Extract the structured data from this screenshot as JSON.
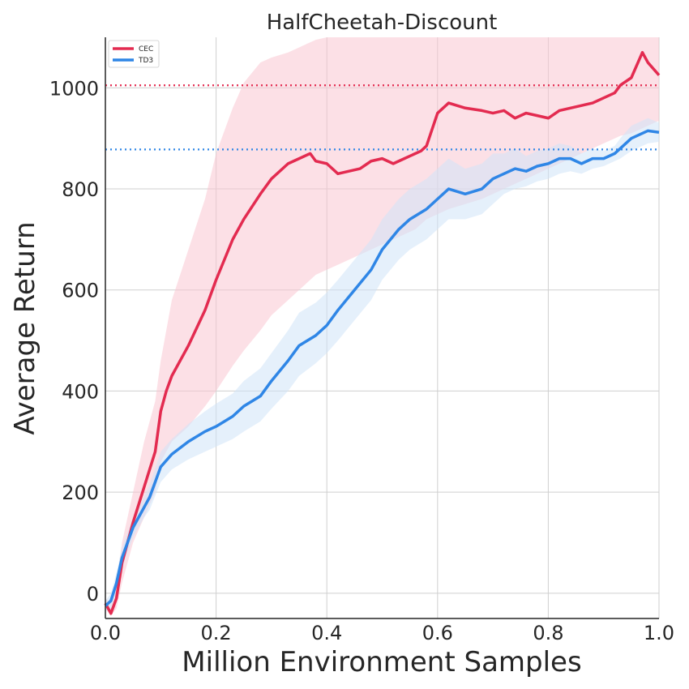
{
  "chart_data": {
    "type": "line",
    "title": "HalfCheetah-Discount",
    "xlabel": "Million Environment Samples",
    "ylabel": "Average Return",
    "xlim": [
      0,
      1.0
    ],
    "ylim": [
      -50,
      1100
    ],
    "xticks": [
      0.0,
      0.2,
      0.4,
      0.6,
      0.8,
      1.0
    ],
    "xtick_labels": [
      "0.0",
      "0.2",
      "0.4",
      "0.6",
      "0.8",
      "1.0"
    ],
    "yticks": [
      0,
      200,
      400,
      600,
      800,
      1000
    ],
    "ytick_labels": [
      "0",
      "200",
      "400",
      "600",
      "800",
      "1000"
    ],
    "grid": true,
    "legend_position": "top-left",
    "series": [
      {
        "name": "CEC",
        "color": "#e32b50",
        "band_color": "#f9c6d2",
        "reference_line": 1005,
        "x": [
          0.0,
          0.01,
          0.02,
          0.03,
          0.05,
          0.07,
          0.09,
          0.1,
          0.11,
          0.12,
          0.15,
          0.18,
          0.2,
          0.23,
          0.25,
          0.28,
          0.3,
          0.33,
          0.35,
          0.37,
          0.38,
          0.4,
          0.42,
          0.44,
          0.46,
          0.48,
          0.5,
          0.52,
          0.54,
          0.56,
          0.57,
          0.58,
          0.6,
          0.62,
          0.65,
          0.68,
          0.7,
          0.72,
          0.74,
          0.76,
          0.78,
          0.8,
          0.82,
          0.84,
          0.86,
          0.88,
          0.9,
          0.92,
          0.93,
          0.95,
          0.97,
          0.98,
          1.0
        ],
        "y": [
          -20,
          -40,
          -10,
          60,
          140,
          210,
          280,
          360,
          400,
          430,
          490,
          560,
          620,
          700,
          740,
          790,
          820,
          850,
          860,
          870,
          855,
          850,
          830,
          835,
          840,
          855,
          860,
          850,
          860,
          870,
          875,
          885,
          950,
          970,
          960,
          955,
          950,
          955,
          940,
          950,
          945,
          940,
          955,
          960,
          965,
          970,
          980,
          990,
          1005,
          1020,
          1070,
          1050,
          1025
        ],
        "lower": [
          -30,
          -45,
          -30,
          20,
          100,
          150,
          200,
          260,
          280,
          300,
          330,
          370,
          400,
          450,
          480,
          520,
          550,
          580,
          600,
          620,
          630,
          640,
          650,
          660,
          670,
          680,
          690,
          700,
          710,
          720,
          730,
          740,
          750,
          760,
          770,
          780,
          790,
          800,
          810,
          820,
          830,
          840,
          850,
          860,
          870,
          880,
          890,
          900,
          905,
          910,
          920,
          925,
          935
        ],
        "upper": [
          -10,
          -20,
          20,
          100,
          200,
          300,
          380,
          460,
          520,
          580,
          680,
          780,
          870,
          960,
          1010,
          1050,
          1060,
          1070,
          1080,
          1090,
          1095,
          1100,
          1100,
          1100,
          1100,
          1100,
          1100,
          1100,
          1100,
          1100,
          1100,
          1100,
          1100,
          1100,
          1100,
          1100,
          1100,
          1100,
          1100,
          1100,
          1100,
          1100,
          1100,
          1100,
          1100,
          1100,
          1100,
          1100,
          1100,
          1100,
          1100,
          1100,
          1100
        ]
      },
      {
        "name": "TD3",
        "color": "#2f86e6",
        "band_color": "#cfe3f7",
        "reference_line": 878,
        "x": [
          0.0,
          0.01,
          0.02,
          0.03,
          0.05,
          0.07,
          0.08,
          0.1,
          0.12,
          0.15,
          0.18,
          0.2,
          0.23,
          0.25,
          0.28,
          0.3,
          0.33,
          0.35,
          0.38,
          0.4,
          0.42,
          0.45,
          0.48,
          0.5,
          0.53,
          0.55,
          0.58,
          0.6,
          0.62,
          0.65,
          0.68,
          0.7,
          0.72,
          0.74,
          0.76,
          0.78,
          0.8,
          0.82,
          0.84,
          0.86,
          0.88,
          0.9,
          0.92,
          0.93,
          0.95,
          0.97,
          0.98,
          1.0
        ],
        "y": [
          -25,
          -15,
          20,
          70,
          130,
          170,
          190,
          250,
          275,
          300,
          320,
          330,
          350,
          370,
          390,
          420,
          460,
          490,
          510,
          530,
          560,
          600,
          640,
          680,
          720,
          740,
          760,
          780,
          800,
          790,
          800,
          820,
          830,
          840,
          835,
          845,
          850,
          860,
          860,
          850,
          860,
          860,
          870,
          880,
          900,
          910,
          915,
          912
        ],
        "lower": [
          -35,
          -30,
          0,
          50,
          110,
          150,
          165,
          220,
          245,
          265,
          280,
          290,
          305,
          320,
          340,
          365,
          400,
          430,
          455,
          475,
          500,
          540,
          580,
          620,
          660,
          680,
          700,
          720,
          740,
          740,
          750,
          770,
          790,
          800,
          805,
          815,
          820,
          830,
          835,
          830,
          840,
          845,
          855,
          860,
          875,
          885,
          890,
          893
        ],
        "upper": [
          -15,
          0,
          40,
          90,
          150,
          190,
          215,
          280,
          305,
          335,
          360,
          375,
          395,
          420,
          445,
          475,
          520,
          555,
          575,
          595,
          620,
          660,
          700,
          740,
          780,
          800,
          820,
          840,
          860,
          840,
          850,
          870,
          870,
          880,
          865,
          875,
          880,
          890,
          885,
          870,
          880,
          875,
          885,
          900,
          925,
          935,
          940,
          931
        ]
      }
    ]
  }
}
